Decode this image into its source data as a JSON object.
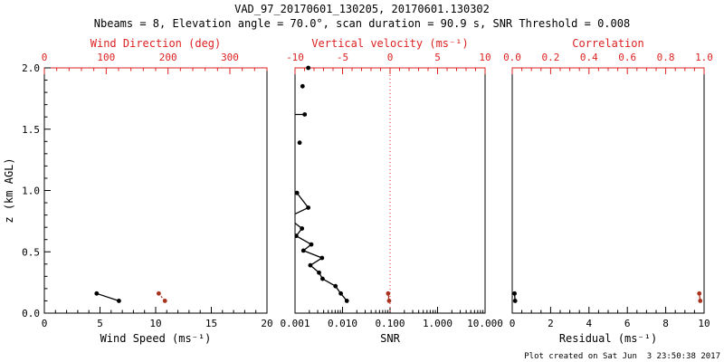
{
  "header": {
    "title": "VAD_97_20170601_130205, 20170601.130302",
    "subtitle": "Nbeams = 8, Elevation angle = 70.0°, scan duration = 90.9 s, SNR Threshold = 0.008"
  },
  "footer": {
    "created": "Plot created on Sat Jun  3 23:50:38 2017"
  },
  "colors": {
    "axis_black": "#000000",
    "axis_red": "#dd2222",
    "marker_black": "#000000",
    "marker_red": "#a8341f",
    "background": "#ffffff"
  },
  "yaxis": {
    "label": "z (km AGL)",
    "lim": [
      0,
      2
    ],
    "ticks": [
      [
        0,
        "0.0"
      ],
      [
        0.5,
        "0.5"
      ],
      [
        1,
        "1.0"
      ],
      [
        1.5,
        "1.5"
      ],
      [
        2,
        "2.0"
      ]
    ],
    "minor_step": 0.1
  },
  "chart_data": [
    {
      "type": "scatter",
      "panel": "wind",
      "xlabel": "Wind Speed (ms⁻¹)",
      "xlog": false,
      "xlim": [
        0,
        20
      ],
      "xticks": [
        [
          0,
          "0"
        ],
        [
          5,
          "5"
        ],
        [
          10,
          "10"
        ],
        [
          15,
          "15"
        ],
        [
          20,
          "20"
        ]
      ],
      "x_minor_step": 1,
      "ylabel": "z (km AGL)",
      "ylim": [
        0,
        2
      ],
      "top": {
        "label": "Wind Direction (deg)",
        "lim": [
          0,
          360
        ],
        "ticks": [
          [
            0,
            "0"
          ],
          [
            100,
            "100"
          ],
          [
            200,
            "200"
          ],
          [
            300,
            "300"
          ]
        ],
        "minor_step": 20
      },
      "series": [
        {
          "name": "wind-speed",
          "axis": "bottom",
          "color": "black",
          "dash": false,
          "points": [
            [
              4.7,
              0.16
            ],
            [
              6.7,
              0.1
            ]
          ],
          "gaps": []
        },
        {
          "name": "wind-direction",
          "axis": "top",
          "color": "red",
          "dash": true,
          "points": [
            [
              185,
              0.16
            ],
            [
              195,
              0.1
            ]
          ],
          "gaps": []
        }
      ]
    },
    {
      "type": "scatter",
      "panel": "snr",
      "xlabel": "SNR",
      "xlog": true,
      "xlim": [
        0.001,
        10
      ],
      "xticks": [
        [
          0.001,
          "0.001"
        ],
        [
          0.01,
          "0.010"
        ],
        [
          0.1,
          "0.100"
        ],
        [
          1,
          "1.000"
        ],
        [
          10,
          "10.000"
        ]
      ],
      "x_minor_step": 0,
      "ylabel": "z (km AGL)",
      "ylim": [
        0,
        2
      ],
      "top": {
        "label": "Vertical velocity (ms⁻¹)",
        "lim": [
          -10,
          10
        ],
        "ticks": [
          [
            -10,
            "-10"
          ],
          [
            -5,
            "-5"
          ],
          [
            0,
            "0"
          ],
          [
            5,
            "5"
          ],
          [
            10,
            "10"
          ]
        ],
        "minor_step": 1
      },
      "refline": {
        "axis": "top",
        "value": 0,
        "color": "red",
        "style": "dotted"
      },
      "series": [
        {
          "name": "snr-profile",
          "axis": "bottom",
          "color": "black",
          "dash": false,
          "points": [
            [
              0.0123,
              0.1
            ],
            [
              0.0092,
              0.16
            ],
            [
              0.0071,
              0.22
            ],
            [
              0.0038,
              0.28
            ],
            [
              0.0032,
              0.33
            ],
            [
              0.0021,
              0.39
            ],
            [
              0.0037,
              0.45
            ],
            [
              0.0015,
              0.51
            ],
            [
              0.0022,
              0.56
            ],
            [
              0.00106,
              0.63
            ],
            [
              0.0014,
              0.69
            ],
            [
              0.0007,
              0.78
            ],
            [
              0.0019,
              0.86
            ],
            [
              0.0011,
              0.98
            ],
            [
              0.00125,
              1.39
            ],
            [
              0.0008,
              1.62
            ],
            [
              0.0016,
              1.62
            ],
            [
              0.00144,
              1.85
            ],
            [
              0.0019,
              2.0
            ]
          ],
          "gaps": [
            14,
            15,
            17,
            18
          ]
        },
        {
          "name": "vertical-velocity",
          "axis": "top",
          "color": "red",
          "dash": false,
          "points": [
            [
              -0.2,
              0.16
            ],
            [
              -0.1,
              0.1
            ]
          ],
          "gaps": []
        }
      ]
    },
    {
      "type": "scatter",
      "panel": "residual",
      "xlabel": "Residual (ms⁻¹)",
      "xlog": false,
      "xlim": [
        0,
        10
      ],
      "xticks": [
        [
          0,
          "0"
        ],
        [
          2,
          "2"
        ],
        [
          4,
          "4"
        ],
        [
          6,
          "6"
        ],
        [
          8,
          "8"
        ],
        [
          10,
          "10"
        ]
      ],
      "x_minor_step": 0.5,
      "ylabel": "z (km AGL)",
      "ylim": [
        0,
        2
      ],
      "top": {
        "label": "Correlation",
        "lim": [
          0,
          1
        ],
        "ticks": [
          [
            0,
            "0.0"
          ],
          [
            0.2,
            "0.2"
          ],
          [
            0.4,
            "0.4"
          ],
          [
            0.6,
            "0.6"
          ],
          [
            0.8,
            "0.8"
          ],
          [
            1,
            "1.0"
          ]
        ],
        "minor_step": 0.05
      },
      "series": [
        {
          "name": "residual",
          "axis": "bottom",
          "color": "black",
          "dash": false,
          "points": [
            [
              0.12,
              0.16
            ],
            [
              0.15,
              0.1
            ]
          ],
          "gaps": []
        },
        {
          "name": "correlation",
          "axis": "top",
          "color": "red",
          "dash": false,
          "points": [
            [
              0.975,
              0.16
            ],
            [
              0.98,
              0.1
            ]
          ],
          "gaps": []
        }
      ]
    }
  ]
}
